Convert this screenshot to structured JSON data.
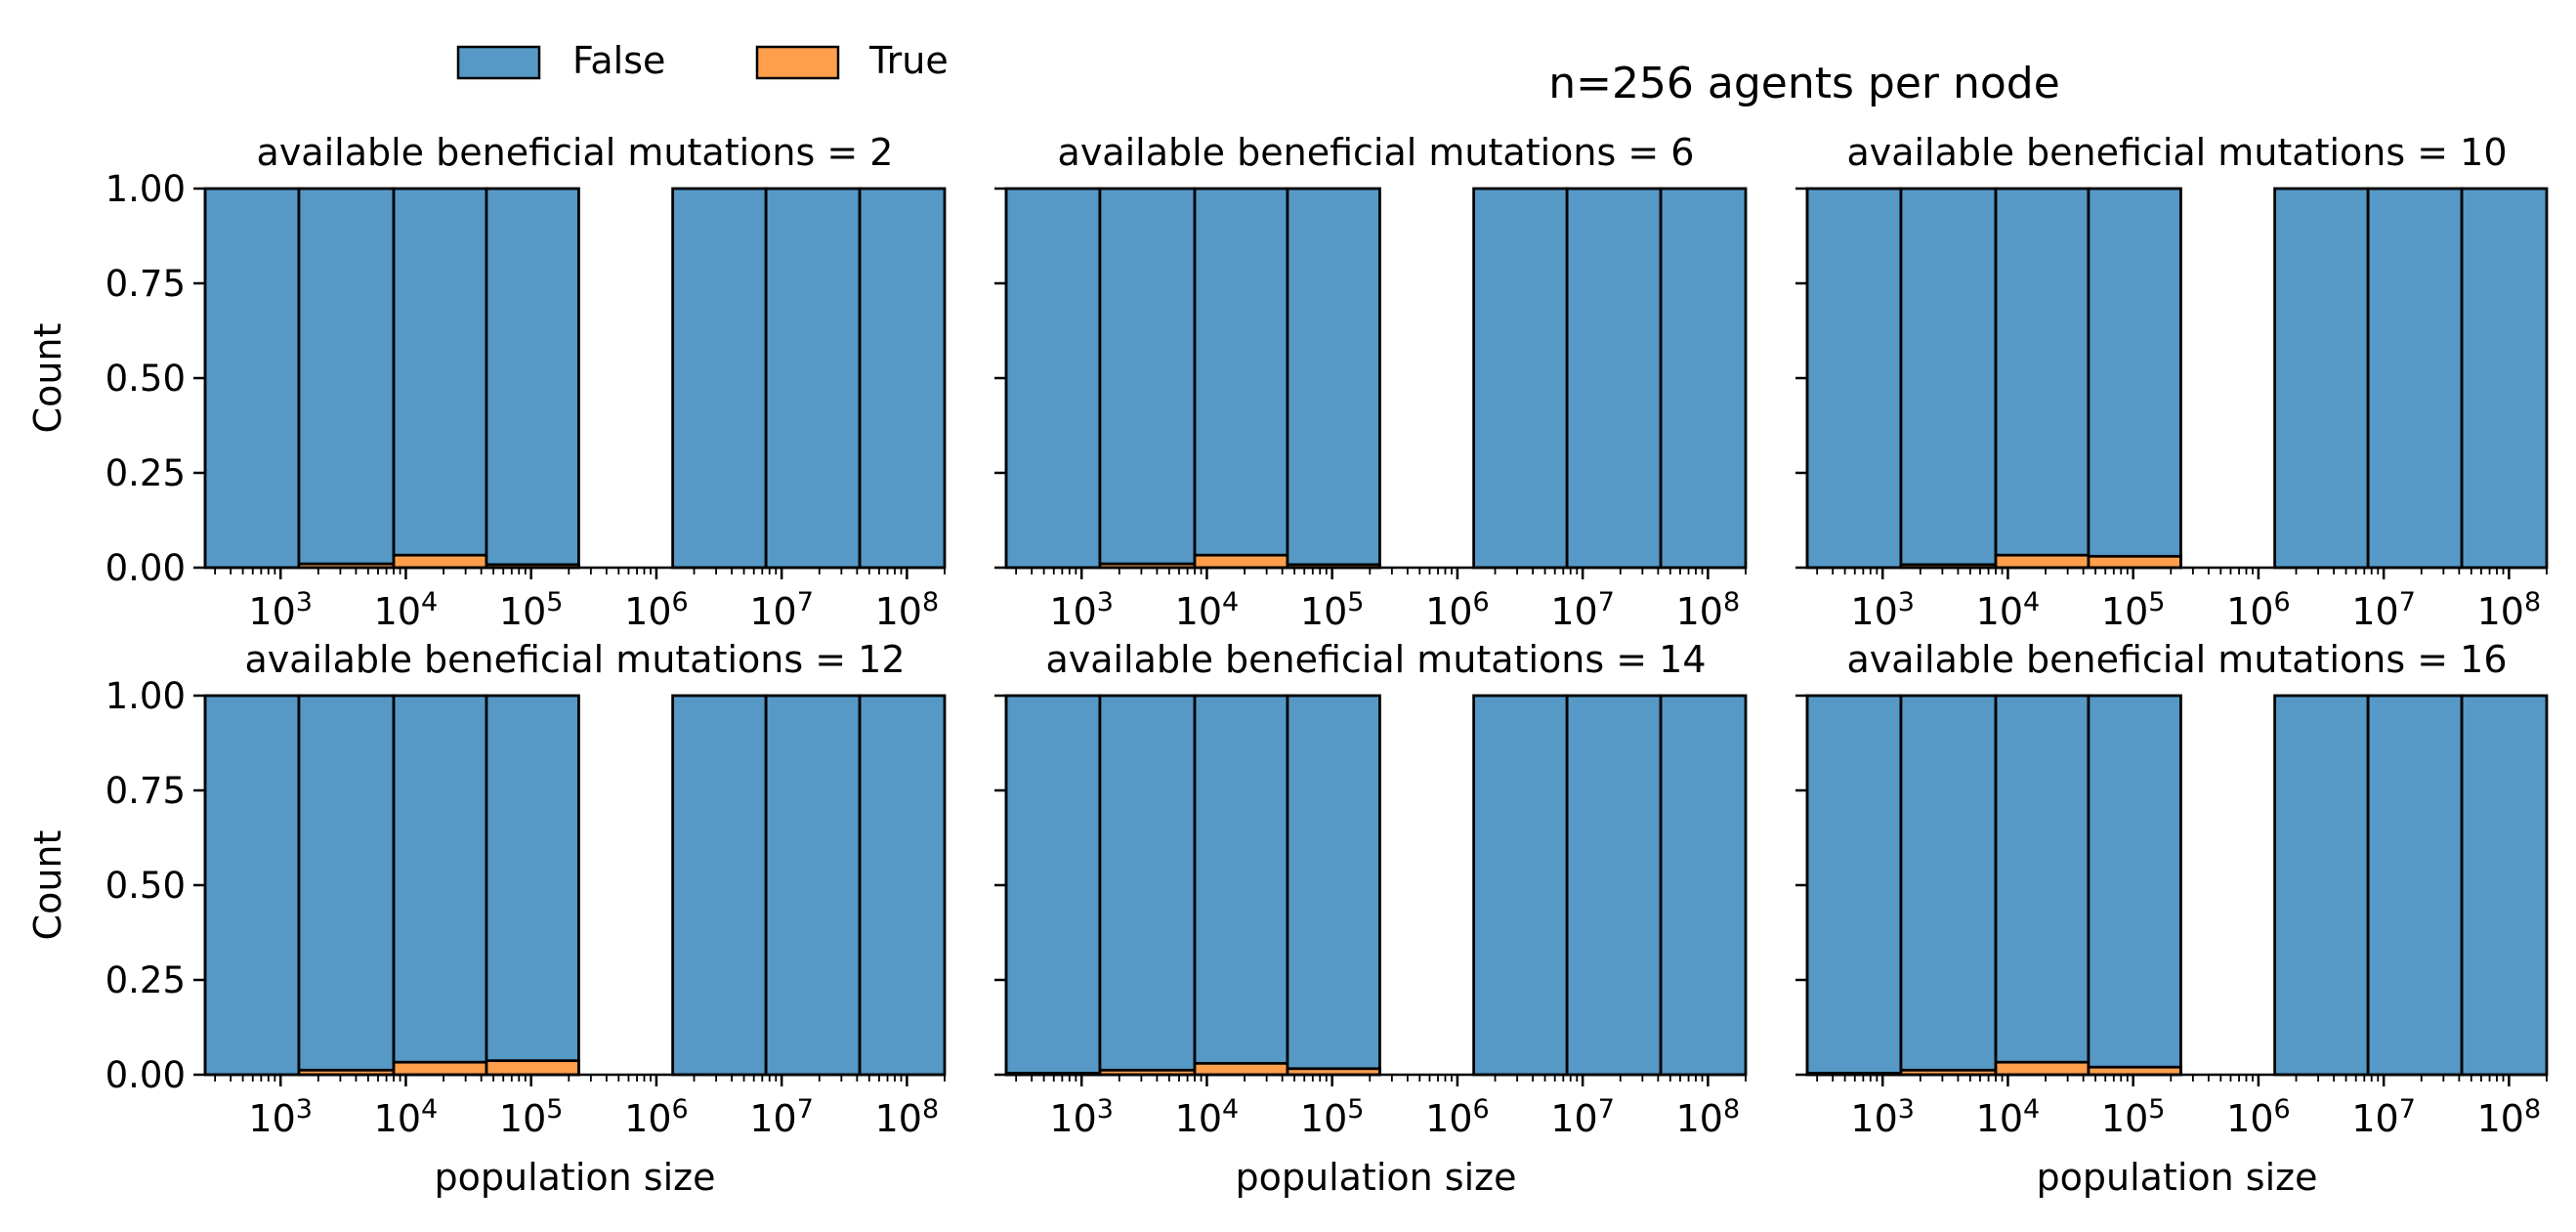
{
  "figure": {
    "suptitle": "n=256 agents per node"
  },
  "legend": {
    "placement": "top-left",
    "entries": [
      {
        "label": "False",
        "color": "#5699c6"
      },
      {
        "label": "True",
        "color": "#ff9f4b"
      }
    ]
  },
  "colors": {
    "false_fill": "#5699c6",
    "true_fill": "#ff9f4b",
    "bar_edge": "#000000"
  },
  "chart_data": [
    {
      "type": "bar",
      "stacked": true,
      "title": "available beneficial mutations = 2",
      "xlabel": "",
      "ylabel": "Count",
      "xscale": "log",
      "xlim": [
        250,
        200000000
      ],
      "ylim": [
        0,
        1
      ],
      "yticks": [
        "0.00",
        "0.25",
        "0.50",
        "0.75",
        "1.00"
      ],
      "xticks": [
        "10^3",
        "10^4",
        "10^5",
        "10^6",
        "10^7",
        "10^8"
      ],
      "bins": [
        [
          250,
          1400
        ],
        [
          1400,
          8000
        ],
        [
          8000,
          44000
        ],
        [
          44000,
          240000
        ],
        [
          240000,
          1350000
        ],
        [
          1350000,
          7500000
        ],
        [
          7500000,
          42000000
        ],
        [
          42000000,
          200000000
        ]
      ],
      "series": [
        {
          "name": "True",
          "values": [
            0.0,
            0.01,
            0.033,
            0.008,
            0,
            0.0,
            0.0,
            0.0
          ]
        },
        {
          "name": "False",
          "values": [
            1.0,
            0.99,
            0.967,
            0.992,
            0,
            1.0,
            1.0,
            1.0
          ]
        }
      ]
    },
    {
      "type": "bar",
      "stacked": true,
      "title": "available beneficial mutations = 6",
      "xlabel": "",
      "ylabel": "",
      "xscale": "log",
      "xlim": [
        250,
        200000000
      ],
      "ylim": [
        0,
        1
      ],
      "yticks": [
        "",
        "",
        "",
        "",
        ""
      ],
      "xticks": [
        "10^3",
        "10^4",
        "10^5",
        "10^6",
        "10^7",
        "10^8"
      ],
      "bins": [
        [
          250,
          1400
        ],
        [
          1400,
          8000
        ],
        [
          8000,
          44000
        ],
        [
          44000,
          240000
        ],
        [
          240000,
          1350000
        ],
        [
          1350000,
          7500000
        ],
        [
          7500000,
          42000000
        ],
        [
          42000000,
          200000000
        ]
      ],
      "series": [
        {
          "name": "True",
          "values": [
            0.0,
            0.01,
            0.033,
            0.008,
            0,
            0.0,
            0.0,
            0.0
          ]
        },
        {
          "name": "False",
          "values": [
            1.0,
            0.99,
            0.967,
            0.992,
            0,
            1.0,
            1.0,
            1.0
          ]
        }
      ]
    },
    {
      "type": "bar",
      "stacked": true,
      "title": "available beneficial mutations = 10",
      "xlabel": "",
      "ylabel": "",
      "xscale": "log",
      "xlim": [
        250,
        200000000
      ],
      "ylim": [
        0,
        1
      ],
      "yticks": [
        "",
        "",
        "",
        "",
        ""
      ],
      "xticks": [
        "10^3",
        "10^4",
        "10^5",
        "10^6",
        "10^7",
        "10^8"
      ],
      "bins": [
        [
          250,
          1400
        ],
        [
          1400,
          8000
        ],
        [
          8000,
          44000
        ],
        [
          44000,
          240000
        ],
        [
          240000,
          1350000
        ],
        [
          1350000,
          7500000
        ],
        [
          7500000,
          42000000
        ],
        [
          42000000,
          200000000
        ]
      ],
      "series": [
        {
          "name": "True",
          "values": [
            0.0,
            0.008,
            0.033,
            0.03,
            0,
            0.0,
            0.0,
            0.0
          ]
        },
        {
          "name": "False",
          "values": [
            1.0,
            0.992,
            0.967,
            0.97,
            0,
            1.0,
            1.0,
            1.0
          ]
        }
      ]
    },
    {
      "type": "bar",
      "stacked": true,
      "title": "available beneficial mutations = 12",
      "xlabel": "population size",
      "ylabel": "Count",
      "xscale": "log",
      "xlim": [
        250,
        200000000
      ],
      "ylim": [
        0,
        1
      ],
      "yticks": [
        "0.00",
        "0.25",
        "0.50",
        "0.75",
        "1.00"
      ],
      "xticks": [
        "10^3",
        "10^4",
        "10^5",
        "10^6",
        "10^7",
        "10^8"
      ],
      "bins": [
        [
          250,
          1400
        ],
        [
          1400,
          8000
        ],
        [
          8000,
          44000
        ],
        [
          44000,
          240000
        ],
        [
          240000,
          1350000
        ],
        [
          1350000,
          7500000
        ],
        [
          7500000,
          42000000
        ],
        [
          42000000,
          200000000
        ]
      ],
      "series": [
        {
          "name": "True",
          "values": [
            0.0,
            0.012,
            0.033,
            0.037,
            0,
            0.0,
            0.0,
            0.0
          ]
        },
        {
          "name": "False",
          "values": [
            1.0,
            0.988,
            0.967,
            0.963,
            0,
            1.0,
            1.0,
            1.0
          ]
        }
      ]
    },
    {
      "type": "bar",
      "stacked": true,
      "title": "available beneficial mutations = 14",
      "xlabel": "population size",
      "ylabel": "",
      "xscale": "log",
      "xlim": [
        250,
        200000000
      ],
      "ylim": [
        0,
        1
      ],
      "yticks": [
        "",
        "",
        "",
        "",
        ""
      ],
      "xticks": [
        "10^3",
        "10^4",
        "10^5",
        "10^6",
        "10^7",
        "10^8"
      ],
      "bins": [
        [
          250,
          1400
        ],
        [
          1400,
          8000
        ],
        [
          8000,
          44000
        ],
        [
          44000,
          240000
        ],
        [
          240000,
          1350000
        ],
        [
          1350000,
          7500000
        ],
        [
          7500000,
          42000000
        ],
        [
          42000000,
          200000000
        ]
      ],
      "series": [
        {
          "name": "True",
          "values": [
            0.004,
            0.012,
            0.03,
            0.016,
            0,
            0.0,
            0.0,
            0.0
          ]
        },
        {
          "name": "False",
          "values": [
            0.996,
            0.988,
            0.97,
            0.984,
            0,
            1.0,
            1.0,
            1.0
          ]
        }
      ]
    },
    {
      "type": "bar",
      "stacked": true,
      "title": "available beneficial mutations = 16",
      "xlabel": "population size",
      "ylabel": "",
      "xscale": "log",
      "xlim": [
        250,
        200000000
      ],
      "ylim": [
        0,
        1
      ],
      "yticks": [
        "",
        "",
        "",
        "",
        ""
      ],
      "xticks": [
        "10^3",
        "10^4",
        "10^5",
        "10^6",
        "10^7",
        "10^8"
      ],
      "bins": [
        [
          250,
          1400
        ],
        [
          1400,
          8000
        ],
        [
          8000,
          44000
        ],
        [
          44000,
          240000
        ],
        [
          240000,
          1350000
        ],
        [
          1350000,
          7500000
        ],
        [
          7500000,
          42000000
        ],
        [
          42000000,
          200000000
        ]
      ],
      "series": [
        {
          "name": "True",
          "values": [
            0.004,
            0.012,
            0.033,
            0.02,
            0,
            0.0,
            0.0,
            0.0
          ]
        },
        {
          "name": "False",
          "values": [
            0.996,
            0.988,
            0.967,
            0.98,
            0,
            1.0,
            1.0,
            1.0
          ]
        }
      ]
    }
  ]
}
